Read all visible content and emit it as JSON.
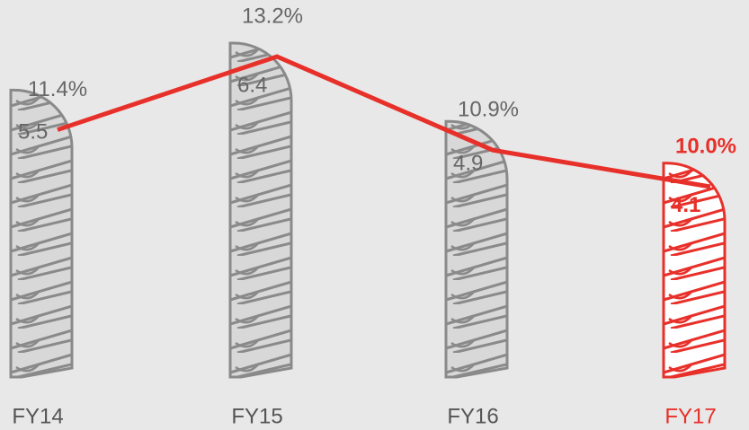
{
  "chart_data": {
    "type": "bar",
    "categories": [
      "FY14",
      "FY15",
      "FY16",
      "FY17"
    ],
    "values": [
      5.5,
      6.4,
      4.9,
      4.1
    ],
    "colors": [
      "#8a8a8a",
      "#8a8a8a",
      "#8a8a8a",
      "#e8302a"
    ],
    "line": {
      "values": [
        11.4,
        13.2,
        10.9,
        10.0
      ],
      "value_labels": [
        "11.4%",
        "13.2%",
        "10.9%",
        "10.0%"
      ],
      "color": "#e8302a"
    }
  }
}
